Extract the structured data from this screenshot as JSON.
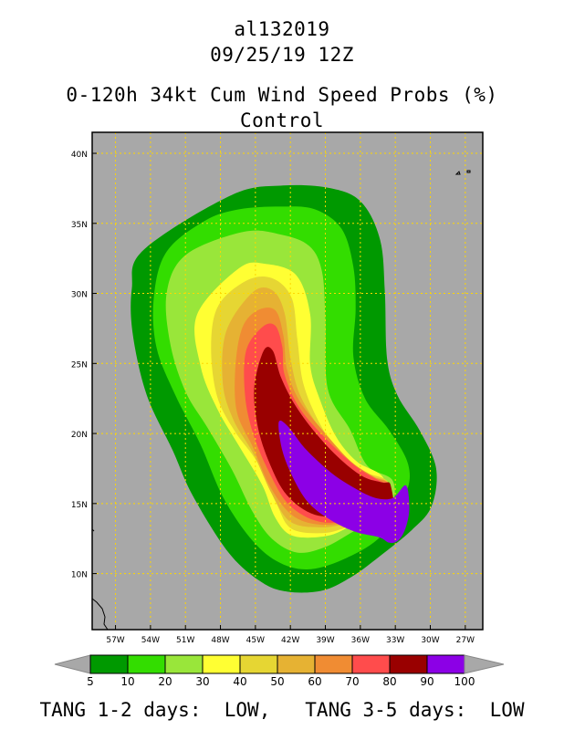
{
  "header": {
    "storm_id": "al132019",
    "datetime": "09/25/19 12Z",
    "product": "0-120h 34kt Cum Wind Speed Probs (%)",
    "run": "Control"
  },
  "colors": {
    "ocean": "#a8a8a8",
    "land_outline": "#000000",
    "grid": "#ffd700"
  },
  "chart_data": {
    "type": "heatmap",
    "title": "0-120h 34kt Cum Wind Speed Probs (%)",
    "x_axis": {
      "ticks": [
        "57W",
        "54W",
        "51W",
        "48W",
        "45W",
        "42W",
        "39W",
        "36W",
        "33W",
        "30W",
        "27W"
      ],
      "range_deg_west": [
        59,
        25.5
      ]
    },
    "y_axis": {
      "ticks": [
        "10N",
        "15N",
        "20N",
        "25N",
        "30N",
        "35N",
        "40N"
      ],
      "range_deg_north": [
        6,
        41.5
      ]
    },
    "grid": true,
    "legend_placement": "bottom",
    "legend": {
      "labels": [
        "5",
        "10",
        "20",
        "30",
        "40",
        "50",
        "60",
        "70",
        "80",
        "90",
        "100"
      ],
      "colors": [
        "#009900",
        "#33dd00",
        "#99e63a",
        "#ffff33",
        "#e6d633",
        "#e6b233",
        "#f08c33",
        "#ff4c4c",
        "#990000",
        "#8c00e6"
      ]
    },
    "contours": [
      {
        "min": 5,
        "color": "#009900",
        "ring": [
          [
            -47.1,
            37.0
          ],
          [
            -42.6,
            37.7
          ],
          [
            -38.5,
            37.5
          ],
          [
            -35.9,
            36.5
          ],
          [
            -34.3,
            33.8
          ],
          [
            -33.9,
            30.1
          ],
          [
            -33.7,
            25.3
          ],
          [
            -32.8,
            22.7
          ],
          [
            -30.9,
            20.2
          ],
          [
            -29.5,
            17.5
          ],
          [
            -29.9,
            14.8
          ],
          [
            -31.6,
            13.1
          ],
          [
            -34.4,
            11.2
          ],
          [
            -36.7,
            9.8
          ],
          [
            -39.2,
            8.8
          ],
          [
            -42.2,
            8.7
          ],
          [
            -44.5,
            9.4
          ],
          [
            -47.3,
            11.5
          ],
          [
            -50.4,
            15.6
          ],
          [
            -52.1,
            18.8
          ],
          [
            -54.3,
            22.7
          ],
          [
            -55.5,
            27.0
          ],
          [
            -55.6,
            30.3
          ],
          [
            -54.6,
            33.1
          ]
        ]
      },
      {
        "min": 10,
        "color": "#33dd00",
        "ring": [
          [
            -46.4,
            36.0
          ],
          [
            -42.9,
            36.2
          ],
          [
            -39.9,
            36.0
          ],
          [
            -37.6,
            34.6
          ],
          [
            -36.6,
            31.9
          ],
          [
            -36.4,
            28.9
          ],
          [
            -36.6,
            25.5
          ],
          [
            -35.6,
            22.5
          ],
          [
            -33.5,
            20.2
          ],
          [
            -31.9,
            17.8
          ],
          [
            -32.1,
            15.7
          ],
          [
            -34.2,
            12.7
          ],
          [
            -37.5,
            11.0
          ],
          [
            -40.6,
            10.3
          ],
          [
            -43.2,
            10.9
          ],
          [
            -45.5,
            12.6
          ],
          [
            -47.8,
            15.5
          ],
          [
            -49.7,
            19.2
          ],
          [
            -51.9,
            22.8
          ],
          [
            -53.5,
            26.2
          ],
          [
            -53.7,
            29.8
          ],
          [
            -52.6,
            33.0
          ],
          [
            -49.3,
            35.2
          ]
        ]
      },
      {
        "min": 20,
        "color": "#99e63a",
        "ring": [
          [
            -46.0,
            34.4
          ],
          [
            -42.8,
            34.2
          ],
          [
            -40.4,
            33.4
          ],
          [
            -39.3,
            31.6
          ],
          [
            -39.0,
            28.2
          ],
          [
            -38.8,
            23.2
          ],
          [
            -36.9,
            20.3
          ],
          [
            -35.4,
            17.7
          ],
          [
            -33.2,
            16.6
          ],
          [
            -33.6,
            14.4
          ],
          [
            -36.6,
            13.0
          ],
          [
            -39.0,
            11.9
          ],
          [
            -41.4,
            11.5
          ],
          [
            -43.6,
            12.5
          ],
          [
            -45.3,
            14.5
          ],
          [
            -47.0,
            17.4
          ],
          [
            -49.1,
            20.4
          ],
          [
            -51.0,
            23.0
          ],
          [
            -52.3,
            26.4
          ],
          [
            -52.6,
            30.1
          ],
          [
            -50.9,
            32.8
          ]
        ]
      },
      {
        "min": 30,
        "color": "#ffff33",
        "ring": [
          [
            -46.4,
            31.8
          ],
          [
            -44.1,
            32.1
          ],
          [
            -41.5,
            31.3
          ],
          [
            -40.3,
            28.5
          ],
          [
            -40.3,
            24.9
          ],
          [
            -39.5,
            22.5
          ],
          [
            -38.1,
            19.8
          ],
          [
            -36.3,
            18.0
          ],
          [
            -34.0,
            16.8
          ],
          [
            -33.8,
            14.3
          ],
          [
            -36.5,
            13.5
          ],
          [
            -38.8,
            12.7
          ],
          [
            -41.8,
            12.7
          ],
          [
            -43.3,
            14.0
          ],
          [
            -44.4,
            16.3
          ],
          [
            -46.4,
            19.1
          ],
          [
            -48.3,
            21.8
          ],
          [
            -49.7,
            24.8
          ],
          [
            -50.0,
            28.5
          ]
        ]
      },
      {
        "min": 40,
        "color": "#e6d633",
        "ring": [
          [
            -45.8,
            30.9
          ],
          [
            -43.6,
            31.1
          ],
          [
            -41.9,
            29.7
          ],
          [
            -41.4,
            26.7
          ],
          [
            -40.9,
            23.6
          ],
          [
            -39.6,
            20.9
          ],
          [
            -37.8,
            18.6
          ],
          [
            -35.8,
            17.3
          ],
          [
            -33.6,
            16.5
          ],
          [
            -33.7,
            14.2
          ],
          [
            -36.8,
            13.4
          ],
          [
            -39.1,
            12.9
          ],
          [
            -41.9,
            13.2
          ],
          [
            -43.2,
            15.0
          ],
          [
            -44.8,
            17.9
          ],
          [
            -46.8,
            20.2
          ],
          [
            -48.3,
            22.7
          ],
          [
            -48.8,
            26.2
          ],
          [
            -48.2,
            29.1
          ]
        ]
      },
      {
        "min": 50,
        "color": "#e6b233",
        "ring": [
          [
            -45.2,
            30.1
          ],
          [
            -43.5,
            30.2
          ],
          [
            -42.5,
            28.6
          ],
          [
            -42.0,
            25.4
          ],
          [
            -41.2,
            22.8
          ],
          [
            -39.4,
            20.3
          ],
          [
            -37.2,
            18.2
          ],
          [
            -35.2,
            17.0
          ],
          [
            -33.6,
            16.4
          ],
          [
            -33.6,
            14.1
          ],
          [
            -36.8,
            13.6
          ],
          [
            -39.4,
            13.3
          ],
          [
            -42.0,
            13.7
          ],
          [
            -43.6,
            15.7
          ],
          [
            -45.2,
            18.6
          ],
          [
            -46.9,
            21.0
          ],
          [
            -47.8,
            23.6
          ],
          [
            -47.5,
            27.3
          ]
        ]
      },
      {
        "min": 60,
        "color": "#f08c33",
        "ring": [
          [
            -44.8,
            28.8
          ],
          [
            -43.3,
            28.8
          ],
          [
            -42.6,
            27.0
          ],
          [
            -42.3,
            24.6
          ],
          [
            -41.2,
            22.3
          ],
          [
            -39.0,
            20.0
          ],
          [
            -36.8,
            18.0
          ],
          [
            -34.8,
            16.9
          ],
          [
            -33.5,
            16.3
          ],
          [
            -33.5,
            14.1
          ],
          [
            -36.5,
            13.7
          ],
          [
            -39.5,
            13.5
          ],
          [
            -41.9,
            14.2
          ],
          [
            -43.8,
            16.3
          ],
          [
            -45.2,
            19.0
          ],
          [
            -46.6,
            21.6
          ],
          [
            -46.7,
            24.9
          ],
          [
            -46.1,
            27.6
          ]
        ]
      },
      {
        "min": 70,
        "color": "#ff4c4c",
        "ring": [
          [
            -44.4,
            27.6
          ],
          [
            -43.3,
            27.7
          ],
          [
            -42.7,
            26.2
          ],
          [
            -42.5,
            24.2
          ],
          [
            -41.2,
            21.8
          ],
          [
            -38.8,
            19.5
          ],
          [
            -36.3,
            17.6
          ],
          [
            -34.3,
            16.6
          ],
          [
            -33.5,
            16.3
          ],
          [
            -33.3,
            14.1
          ],
          [
            -36.3,
            13.8
          ],
          [
            -39.5,
            13.7
          ],
          [
            -42.1,
            14.9
          ],
          [
            -43.8,
            17.2
          ],
          [
            -45.2,
            20.0
          ],
          [
            -45.9,
            22.8
          ],
          [
            -45.8,
            25.9
          ]
        ]
      },
      {
        "min": 80,
        "color": "#990000",
        "ring": [
          [
            -44.3,
            25.9
          ],
          [
            -43.5,
            25.9
          ],
          [
            -42.8,
            24.0
          ],
          [
            -41.5,
            21.9
          ],
          [
            -39.6,
            19.8
          ],
          [
            -37.5,
            18.0
          ],
          [
            -35.7,
            16.9
          ],
          [
            -34.1,
            16.5
          ],
          [
            -33.4,
            16.3
          ],
          [
            -33.4,
            14.0
          ],
          [
            -36.8,
            14.1
          ],
          [
            -39.9,
            14.2
          ],
          [
            -42.3,
            15.6
          ],
          [
            -43.8,
            17.9
          ],
          [
            -44.8,
            20.5
          ],
          [
            -45.1,
            23.3
          ]
        ]
      },
      {
        "min": 90,
        "color": "#8c00e6",
        "ring": [
          [
            -43.0,
            20.8
          ],
          [
            -42.2,
            20.5
          ],
          [
            -40.7,
            18.9
          ],
          [
            -38.5,
            17.2
          ],
          [
            -36.5,
            16.1
          ],
          [
            -34.7,
            15.4
          ],
          [
            -33.2,
            15.4
          ],
          [
            -32.1,
            16.3
          ],
          [
            -31.8,
            14.7
          ],
          [
            -32.1,
            13.3
          ],
          [
            -32.7,
            12.4
          ],
          [
            -33.5,
            12.2
          ],
          [
            -34.4,
            12.6
          ],
          [
            -36.5,
            13.0
          ],
          [
            -38.7,
            13.9
          ],
          [
            -40.5,
            15.1
          ],
          [
            -41.8,
            16.9
          ],
          [
            -42.7,
            18.8
          ]
        ]
      }
    ]
  },
  "footer": {
    "tang_label_1": "TANG 1-2 days:",
    "tang_value_1": "LOW,",
    "tang_label_2": "TANG 3-5 days:",
    "tang_value_2": "LOW"
  }
}
